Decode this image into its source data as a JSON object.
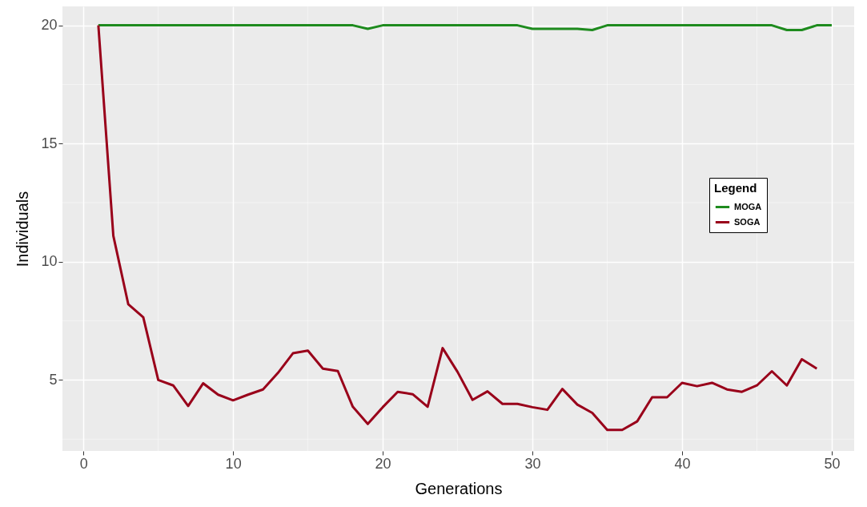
{
  "chart_data": {
    "type": "line",
    "xlabel": "Generations",
    "ylabel": "Individuals",
    "legend_title": "Legend",
    "x": [
      1,
      2,
      3,
      4,
      5,
      6,
      7,
      8,
      9,
      10,
      11,
      12,
      13,
      14,
      15,
      16,
      17,
      18,
      19,
      20,
      21,
      22,
      23,
      24,
      25,
      26,
      27,
      28,
      29,
      30,
      31,
      32,
      33,
      34,
      35,
      36,
      37,
      38,
      39,
      40,
      41,
      42,
      43,
      44,
      45,
      46,
      47,
      48,
      49,
      50
    ],
    "series": [
      {
        "name": "MOGA",
        "color": "#1e8b1e",
        "values": [
          20,
          20,
          20,
          20,
          20,
          20,
          20,
          20,
          20,
          20,
          20,
          20,
          20,
          20,
          20,
          20,
          20,
          20,
          19.85,
          20,
          20,
          20,
          20,
          20,
          20,
          20,
          20,
          20,
          20,
          19.85,
          19.85,
          19.85,
          19.85,
          19.8,
          20,
          20,
          20,
          20,
          20,
          20,
          20,
          20,
          20,
          20,
          20,
          20,
          19.8,
          19.8,
          20,
          20
        ]
      },
      {
        "name": "SOGA",
        "color": "#99001a",
        "values": [
          20,
          11.1,
          8.2,
          7.65,
          5.0,
          4.77,
          3.9,
          4.86,
          4.38,
          4.14,
          4.38,
          4.6,
          5.3,
          6.13,
          6.24,
          5.48,
          5.38,
          3.87,
          3.14,
          3.85,
          4.5,
          4.4,
          3.87,
          6.35,
          5.34,
          4.16,
          4.52,
          3.99,
          3.99,
          3.85,
          3.74,
          4.62,
          3.96,
          3.61,
          2.89,
          2.89,
          3.25,
          4.27,
          4.27,
          4.88,
          4.74,
          4.88,
          4.6,
          4.5,
          4.77,
          5.37,
          4.77,
          5.88,
          5.48,
          null
        ]
      }
    ],
    "xlim": [
      -1.4,
      51.5
    ],
    "xticks": [
      0,
      10,
      20,
      30,
      40,
      50
    ],
    "ylim": [
      2.0,
      20.8
    ],
    "yticks": [
      5,
      10,
      15,
      20
    ],
    "grid": true,
    "legend": "right",
    "line_style": "solid",
    "marker": "none"
  }
}
